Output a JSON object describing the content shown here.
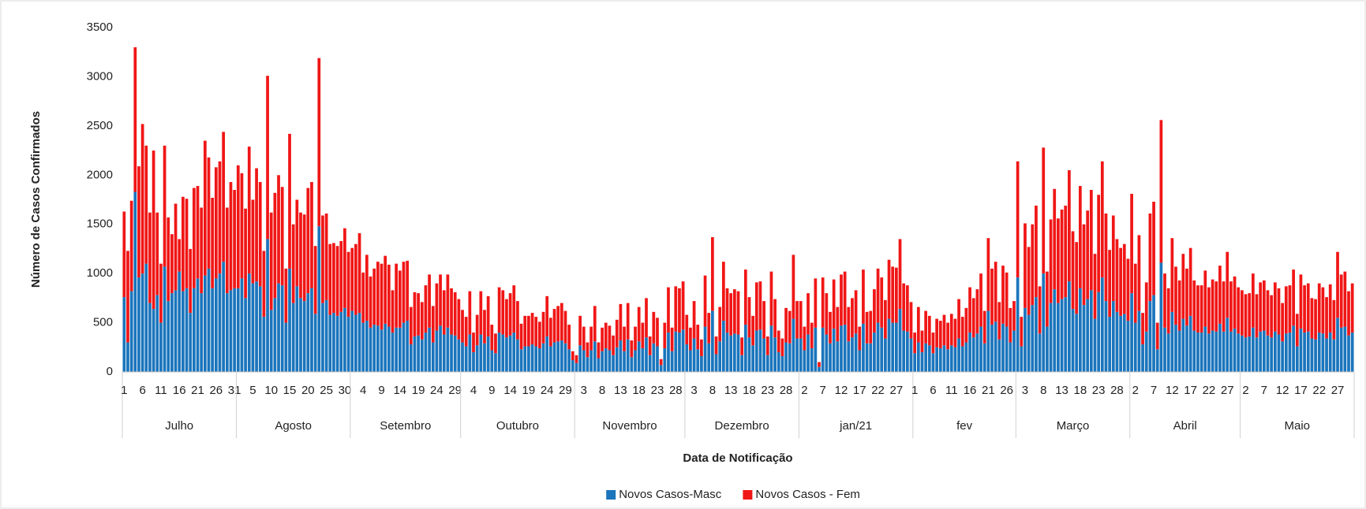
{
  "chart_data": {
    "type": "bar",
    "stacked": true,
    "y_label": "Número de Casos Confirmados",
    "x_label": "Data de Notificação",
    "ylim": [
      0,
      3500
    ],
    "yticks": [
      0,
      500,
      1000,
      1500,
      2000,
      2500,
      3000,
      3500
    ],
    "legend": "bottom",
    "months": [
      {
        "label": "Julho",
        "days": [
          "1",
          null,
          null,
          null,
          null,
          "6",
          null,
          null,
          null,
          null,
          "11",
          null,
          null,
          null,
          null,
          "16",
          null,
          null,
          null,
          null,
          "21",
          null,
          null,
          null,
          null,
          "26",
          null,
          null,
          null,
          null,
          "31"
        ]
      },
      {
        "label": "Agosto",
        "days": [
          null,
          null,
          null,
          null,
          "5",
          null,
          null,
          null,
          null,
          "10",
          null,
          null,
          null,
          null,
          "15",
          null,
          null,
          null,
          null,
          "20",
          null,
          null,
          null,
          null,
          "25",
          null,
          null,
          null,
          null,
          "30",
          null
        ]
      },
      {
        "label": "Setembro",
        "days": [
          null,
          null,
          null,
          "4",
          null,
          null,
          null,
          null,
          "9",
          null,
          null,
          null,
          null,
          "14",
          null,
          null,
          null,
          null,
          "19",
          null,
          null,
          null,
          null,
          "24",
          null,
          null,
          null,
          null,
          "29",
          null
        ]
      },
      {
        "label": "Outubro",
        "days": [
          null,
          null,
          null,
          "4",
          null,
          null,
          null,
          null,
          "9",
          null,
          null,
          null,
          null,
          "14",
          null,
          null,
          null,
          null,
          "19",
          null,
          null,
          null,
          null,
          "24",
          null,
          null,
          null,
          null,
          "29",
          null,
          null
        ]
      },
      {
        "label": "Novembro",
        "days": [
          null,
          null,
          "3",
          null,
          null,
          null,
          null,
          "8",
          null,
          null,
          null,
          null,
          "13",
          null,
          null,
          null,
          null,
          "18",
          null,
          null,
          null,
          null,
          "23",
          null,
          null,
          null,
          null,
          "28",
          null,
          null
        ]
      },
      {
        "label": "Dezembro",
        "days": [
          null,
          null,
          "3",
          null,
          null,
          null,
          null,
          "8",
          null,
          null,
          null,
          null,
          "13",
          null,
          null,
          null,
          null,
          "18",
          null,
          null,
          null,
          null,
          "23",
          null,
          null,
          null,
          null,
          "28",
          null,
          null,
          null
        ]
      },
      {
        "label": "jan/21",
        "days": [
          null,
          "2",
          null,
          null,
          null,
          null,
          "7",
          null,
          null,
          null,
          null,
          "12",
          null,
          null,
          null,
          null,
          "17",
          null,
          null,
          null,
          null,
          "22",
          null,
          null,
          null,
          null,
          "27",
          null,
          null,
          null,
          null
        ]
      },
      {
        "label": "fev",
        "days": [
          "1",
          null,
          null,
          null,
          null,
          "6",
          null,
          null,
          null,
          null,
          "11",
          null,
          null,
          null,
          null,
          "16",
          null,
          null,
          null,
          null,
          "21",
          null,
          null,
          null,
          null,
          "26",
          null,
          null
        ]
      },
      {
        "label": "Março",
        "days": [
          null,
          null,
          "3",
          null,
          null,
          null,
          null,
          "8",
          null,
          null,
          null,
          null,
          "13",
          null,
          null,
          null,
          null,
          "18",
          null,
          null,
          null,
          null,
          "23",
          null,
          null,
          null,
          null,
          "28",
          null,
          null,
          null
        ]
      },
      {
        "label": "Abril",
        "days": [
          null,
          "2",
          null,
          null,
          null,
          null,
          "7",
          null,
          null,
          null,
          null,
          "12",
          null,
          null,
          null,
          null,
          "17",
          null,
          null,
          null,
          null,
          "22",
          null,
          null,
          null,
          null,
          "27",
          null,
          null,
          null
        ]
      },
      {
        "label": "Maio",
        "days": [
          null,
          "2",
          null,
          null,
          null,
          null,
          "7",
          null,
          null,
          null,
          null,
          "12",
          null,
          null,
          null,
          null,
          "17",
          null,
          null,
          null,
          null,
          "22",
          null,
          null,
          null,
          null,
          "27",
          null,
          null,
          null,
          null
        ]
      }
    ],
    "series": [
      {
        "name": "Novos Casos-Masc",
        "color": "#1b75bc",
        "values": [
          760,
          300,
          820,
          1830,
          960,
          1000,
          1100,
          700,
          640,
          780,
          500,
          1070,
          720,
          800,
          830,
          1020,
          820,
          850,
          600,
          850,
          950,
          800,
          980,
          1050,
          850,
          950,
          1000,
          1120,
          800,
          830,
          850,
          850,
          950,
          750,
          1000,
          900,
          920,
          870,
          560,
          1350,
          630,
          750,
          900,
          880,
          500,
          1050,
          700,
          870,
          750,
          720,
          800,
          850,
          590,
          1480,
          700,
          730,
          580,
          600,
          570,
          610,
          650,
          560,
          620,
          580,
          600,
          500,
          520,
          450,
          480,
          470,
          430,
          490,
          460,
          400,
          450,
          450,
          500,
          520,
          280,
          360,
          370,
          330,
          400,
          450,
          300,
          420,
          470,
          380,
          450,
          380,
          370,
          330,
          300,
          260,
          380,
          200,
          270,
          380,
          290,
          360,
          220,
          190,
          400,
          380,
          350,
          370,
          400,
          330,
          230,
          260,
          260,
          280,
          260,
          240,
          290,
          360,
          260,
          300,
          310,
          320,
          290,
          230,
          120,
          90,
          270,
          220,
          150,
          220,
          310,
          140,
          210,
          240,
          220,
          170,
          250,
          320,
          210,
          330,
          150,
          220,
          310,
          240,
          350,
          170,
          290,
          260,
          70,
          240,
          400,
          210,
          410,
          400,
          430,
          280,
          220,
          340,
          230,
          160,
          460,
          290,
          620,
          180,
          310,
          520,
          400,
          370,
          390,
          380,
          170,
          480,
          350,
          270,
          420,
          430,
          340,
          170,
          470,
          350,
          200,
          160,
          300,
          290,
          540,
          340,
          340,
          220,
          380,
          240,
          450,
          50,
          450,
          380,
          290,
          440,
          310,
          470,
          480,
          310,
          350,
          390,
          220,
          490,
          290,
          290,
          400,
          500,
          450,
          340,
          540,
          500,
          500,
          640,
          420,
          410,
          340,
          190,
          300,
          200,
          290,
          270,
          190,
          250,
          240,
          270,
          230,
          270,
          250,
          340,
          260,
          300,
          400,
          350,
          390,
          460,
          290,
          620,
          480,
          510,
          330,
          490,
          460,
          300,
          420,
          960,
          260,
          650,
          580,
          680,
          760,
          390,
          1000,
          460,
          700,
          840,
          700,
          740,
          760,
          920,
          640,
          590,
          850,
          680,
          740,
          830,
          540,
          810,
          960,
          720,
          560,
          720,
          610,
          570,
          590,
          520,
          800,
          500,
          620,
          280,
          410,
          720,
          780,
          230,
          1110,
          450,
          390,
          610,
          480,
          420,
          540,
          470,
          570,
          420,
          400,
          400,
          460,
          390,
          420,
          410,
          490,
          410,
          550,
          410,
          440,
          390,
          370,
          350,
          360,
          450,
          350,
          410,
          420,
          370,
          350,
          410,
          380,
          310,
          390,
          400,
          470,
          260,
          440,
          400,
          410,
          340,
          330,
          400,
          390,
          340,
          400,
          330,
          550,
          450,
          460,
          370,
          400
        ]
      },
      {
        "name": "Novos Casos - Fem",
        "color": "#f01616",
        "values": [
          870,
          930,
          920,
          1470,
          1130,
          1520,
          1200,
          920,
          1610,
          840,
          600,
          1230,
          850,
          600,
          880,
          330,
          960,
          910,
          650,
          1020,
          940,
          870,
          1370,
          1130,
          920,
          1130,
          1140,
          1320,
          870,
          1100,
          1000,
          1250,
          1070,
          910,
          1290,
          850,
          1150,
          1060,
          670,
          1660,
          990,
          1070,
          1100,
          1000,
          550,
          1370,
          800,
          880,
          870,
          880,
          1070,
          1080,
          690,
          1710,
          890,
          880,
          720,
          710,
          710,
          720,
          810,
          660,
          640,
          720,
          810,
          510,
          670,
          520,
          570,
          650,
          670,
          690,
          630,
          430,
          650,
          580,
          620,
          610,
          380,
          450,
          430,
          380,
          480,
          540,
          370,
          480,
          520,
          450,
          540,
          470,
          440,
          410,
          330,
          300,
          440,
          200,
          310,
          440,
          340,
          410,
          260,
          200,
          460,
          450,
          390,
          430,
          480,
          390,
          260,
          310,
          310,
          320,
          300,
          270,
          320,
          410,
          290,
          340,
          360,
          380,
          330,
          250,
          90,
          80,
          300,
          240,
          150,
          240,
          360,
          160,
          240,
          260,
          250,
          200,
          280,
          370,
          250,
          370,
          170,
          240,
          350,
          260,
          400,
          190,
          320,
          290,
          60,
          260,
          460,
          240,
          460,
          450,
          490,
          300,
          230,
          380,
          250,
          170,
          520,
          310,
          750,
          180,
          350,
          600,
          450,
          430,
          450,
          440,
          180,
          560,
          410,
          300,
          490,
          490,
          380,
          190,
          550,
          390,
          220,
          180,
          350,
          330,
          650,
          380,
          380,
          240,
          420,
          260,
          500,
          50,
          510,
          420,
          320,
          500,
          350,
          520,
          540,
          350,
          400,
          440,
          240,
          550,
          320,
          330,
          440,
          550,
          510,
          390,
          600,
          570,
          560,
          710,
          480,
          470,
          370,
          210,
          360,
          220,
          330,
          300,
          210,
          290,
          280,
          310,
          270,
          320,
          290,
          400,
          300,
          350,
          460,
          400,
          450,
          540,
          330,
          740,
          570,
          610,
          380,
          590,
          550,
          350,
          300,
          1180,
          300,
          860,
          690,
          820,
          930,
          480,
          1280,
          560,
          850,
          1020,
          860,
          910,
          930,
          1130,
          790,
          730,
          1040,
          820,
          900,
          1020,
          660,
          990,
          1180,
          890,
          680,
          870,
          740,
          690,
          710,
          630,
          1010,
          600,
          770,
          320,
          500,
          890,
          950,
          270,
          1450,
          550,
          460,
          750,
          590,
          510,
          660,
          580,
          690,
          510,
          480,
          480,
          570,
          470,
          520,
          510,
          590,
          510,
          670,
          510,
          530,
          470,
          460,
          440,
          440,
          550,
          440,
          500,
          510,
          460,
          430,
          500,
          470,
          390,
          480,
          480,
          570,
          330,
          550,
          480,
          490,
          410,
          410,
          500,
          470,
          420,
          490,
          400,
          670,
          540,
          560,
          450,
          500
        ]
      }
    ]
  }
}
